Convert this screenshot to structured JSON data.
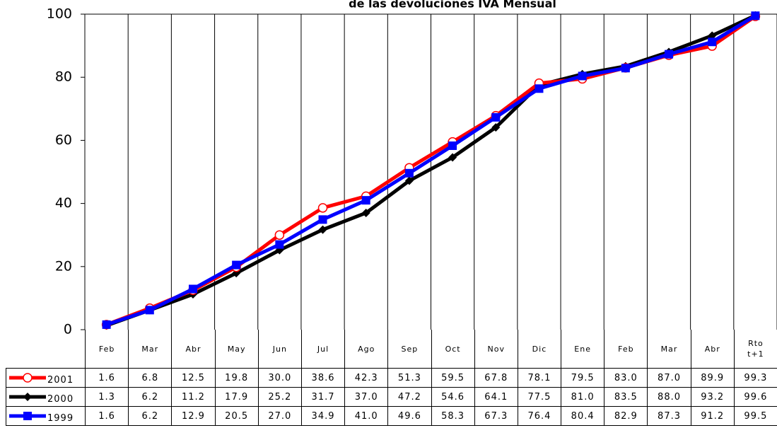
{
  "chart_data": {
    "type": "line",
    "title": "de las devoluciones IVA Mensual",
    "categories": [
      "Feb",
      "Mar",
      "Abr",
      "May",
      "Jun",
      "Jul",
      "Ago",
      "Sep",
      "Oct",
      "Nov",
      "Dic",
      "Ene",
      "Feb",
      "Mar",
      "Abr",
      "Rto t+1"
    ],
    "ylim": [
      0,
      100
    ],
    "yticks": [
      0,
      20,
      40,
      60,
      80,
      100
    ],
    "series": [
      {
        "name": "2001",
        "color": "#ff0000",
        "marker": "circle",
        "values": [
          1.6,
          6.8,
          12.5,
          19.8,
          30.0,
          38.6,
          42.3,
          51.3,
          59.5,
          67.8,
          78.1,
          79.5,
          83.0,
          87.0,
          89.9,
          99.3
        ],
        "value_labels": [
          "1.6",
          "6.8",
          "12.5",
          "19.8",
          "30.0",
          "38.6",
          "42.3",
          "51.3",
          "59.5",
          "67.8",
          "78.1",
          "79.5",
          "83.0",
          "87.0",
          "89.9",
          "99.3"
        ]
      },
      {
        "name": "2000",
        "color": "#000000",
        "marker": "diamond",
        "values": [
          1.3,
          6.2,
          11.2,
          17.9,
          25.2,
          31.7,
          37.0,
          47.2,
          54.6,
          64.1,
          77.5,
          81.0,
          83.5,
          88.0,
          93.2,
          99.6
        ],
        "value_labels": [
          "1.3",
          "6.2",
          "11.2",
          "17.9",
          "25.2",
          "31.7",
          "37.0",
          "47.2",
          "54.6",
          "64.1",
          "77.5",
          "81.0",
          "83.5",
          "88.0",
          "93.2",
          "99.6"
        ]
      },
      {
        "name": "1999",
        "color": "#0000ff",
        "marker": "square",
        "values": [
          1.6,
          6.2,
          12.9,
          20.5,
          27.0,
          34.9,
          41.0,
          49.6,
          58.3,
          67.3,
          76.4,
          80.4,
          82.9,
          87.3,
          91.2,
          99.5
        ],
        "value_labels": [
          "1.6",
          "6.2",
          "12.9",
          "20.5",
          "27.0",
          "34.9",
          "41.0",
          "49.6",
          "58.3",
          "67.3",
          "76.4",
          "80.4",
          "82.9",
          "87.3",
          "91.2",
          "99.5"
        ]
      }
    ]
  }
}
